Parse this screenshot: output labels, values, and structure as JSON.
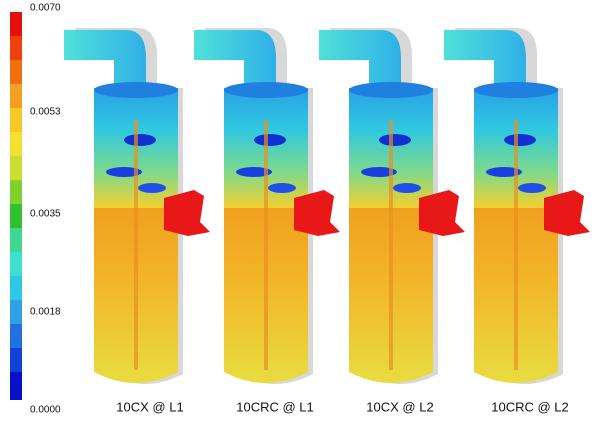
{
  "colorbar": {
    "ticks": [
      "0.0070",
      "0.0053",
      "0.0035",
      "0.0018",
      "0.0000"
    ]
  },
  "panels": [
    {
      "label": "10CX @ L1"
    },
    {
      "label": "10CRC @ L1"
    },
    {
      "label": "10CX @ L2"
    },
    {
      "label": "10CRC @ L2"
    }
  ]
}
